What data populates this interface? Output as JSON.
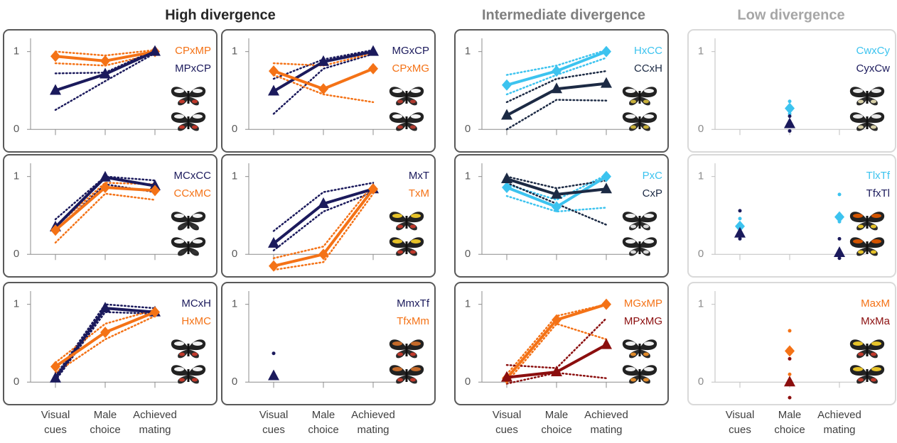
{
  "headings": [
    "High divergence",
    "Intermediate divergence",
    "Low divergence"
  ],
  "chart_data": [
    {
      "type": "line",
      "ylim": [
        -0.29,
        1.28
      ],
      "yticks": [
        0,
        1
      ],
      "frame_color": "#595959",
      "legend_position": "upper right",
      "series": [
        {
          "name": "CPxMP",
          "color": "#f47216",
          "marker": "diamond",
          "values": [
            0.94,
            0.88,
            1.0
          ],
          "lower": [
            0.85,
            0.82,
            0.97
          ],
          "upper": [
            1.0,
            0.95,
            1.02
          ]
        },
        {
          "name": "MPxCP",
          "color": "#1b1a5c",
          "marker": "triangle",
          "values": [
            0.5,
            0.71,
            1.0
          ],
          "lower": [
            0.25,
            0.62,
            0.98
          ],
          "upper": [
            0.72,
            0.73,
            1.02
          ]
        }
      ]
    },
    {
      "type": "line",
      "ylim": [
        -0.29,
        1.28
      ],
      "yticks": [
        0,
        1
      ],
      "frame_color": "#595959",
      "legend_position": "upper right",
      "series": [
        {
          "name": "MGxCP",
          "color": "#1b1a5c",
          "marker": "triangle",
          "values": [
            0.49,
            0.87,
            1.0
          ],
          "lower": [
            0.2,
            0.78,
            0.97
          ],
          "upper": [
            0.65,
            0.9,
            1.02
          ]
        },
        {
          "name": "CPxMG",
          "color": "#f47216",
          "marker": "diamond",
          "values": [
            0.75,
            0.52,
            0.78
          ],
          "lower": [
            0.7,
            0.45,
            0.35
          ],
          "upper": [
            0.85,
            0.82,
            0.98
          ]
        }
      ]
    },
    {
      "type": "line",
      "ylim": [
        -0.29,
        1.28
      ],
      "yticks": [
        0,
        1
      ],
      "frame_color": "#595959",
      "legend_position": "upper right",
      "series": [
        {
          "name": "HxCC",
          "color": "#3cc3ef",
          "marker": "diamond",
          "values": [
            0.57,
            0.75,
            1.0
          ],
          "lower": [
            0.45,
            0.7,
            0.92
          ],
          "upper": [
            0.7,
            0.82,
            1.02
          ]
        },
        {
          "name": "CCxH",
          "color": "#1c2a44",
          "marker": "triangle",
          "values": [
            0.18,
            0.52,
            0.59
          ],
          "lower": [
            0.0,
            0.38,
            0.37
          ],
          "upper": [
            0.35,
            0.65,
            0.75
          ]
        }
      ]
    },
    {
      "type": "scatter",
      "ylim": [
        -0.29,
        1.28
      ],
      "yticks": [
        0,
        1
      ],
      "frame_color": "#d9d9d9",
      "legend_position": "upper right",
      "series": [
        {
          "name": "CwxCy",
          "color": "#3cc3ef",
          "marker": "diamond",
          "values": [
            null,
            0.27,
            null
          ],
          "lower": [
            null,
            0.2,
            null
          ],
          "upper": [
            null,
            0.36,
            null
          ]
        },
        {
          "name": "CyxCw",
          "color": "#1b1a5c",
          "marker": "triangle",
          "values": [
            null,
            0.07,
            null
          ],
          "lower": [
            null,
            -0.02,
            null
          ],
          "upper": [
            null,
            0.17,
            null
          ]
        }
      ]
    },
    {
      "type": "line",
      "ylim": [
        -0.29,
        1.28
      ],
      "yticks": [
        0,
        1
      ],
      "frame_color": "#595959",
      "legend_position": "upper right",
      "series": [
        {
          "name": "MCxCC",
          "color": "#1b1a5c",
          "marker": "triangle",
          "values": [
            0.35,
            0.99,
            0.88
          ],
          "lower": [
            0.3,
            0.9,
            0.8
          ],
          "upper": [
            0.45,
            1.0,
            0.95
          ]
        },
        {
          "name": "CCxMC",
          "color": "#f47216",
          "marker": "diamond",
          "values": [
            0.31,
            0.86,
            0.82
          ],
          "lower": [
            0.15,
            0.78,
            0.7
          ],
          "upper": [
            0.35,
            0.92,
            0.9
          ]
        }
      ]
    },
    {
      "type": "line",
      "ylim": [
        -0.29,
        1.28
      ],
      "yticks": [
        0,
        1
      ],
      "frame_color": "#595959",
      "legend_position": "upper right",
      "series": [
        {
          "name": "MxT",
          "color": "#1b1a5c",
          "marker": "triangle",
          "values": [
            0.14,
            0.65,
            0.84
          ],
          "lower": [
            0.05,
            0.55,
            0.8
          ],
          "upper": [
            0.3,
            0.8,
            0.92
          ]
        },
        {
          "name": "TxM",
          "color": "#f47216",
          "marker": "diamond",
          "values": [
            -0.15,
            0.0,
            0.84
          ],
          "lower": [
            -0.2,
            -0.1,
            0.78
          ],
          "upper": [
            -0.05,
            0.1,
            0.9
          ]
        }
      ]
    },
    {
      "type": "line",
      "ylim": [
        -0.29,
        1.28
      ],
      "yticks": [
        0,
        1
      ],
      "frame_color": "#595959",
      "legend_position": "upper right",
      "series": [
        {
          "name": "PxC",
          "color": "#3cc3ef",
          "marker": "diamond",
          "values": [
            0.86,
            0.61,
            1.0
          ],
          "lower": [
            0.75,
            0.55,
            0.6
          ],
          "upper": [
            0.9,
            0.7,
            1.02
          ]
        },
        {
          "name": "CxP",
          "color": "#1c2a44",
          "marker": "triangle",
          "values": [
            0.97,
            0.77,
            0.84
          ],
          "lower": [
            0.92,
            0.65,
            0.38
          ],
          "upper": [
            1.0,
            0.85,
            0.95
          ]
        }
      ]
    },
    {
      "type": "scatter",
      "ylim": [
        -0.29,
        1.28
      ],
      "yticks": [
        0,
        1
      ],
      "frame_color": "#d9d9d9",
      "legend_position": "upper right",
      "series": [
        {
          "name": "TlxTf",
          "color": "#3cc3ef",
          "marker": "diamond",
          "values": [
            0.36,
            null,
            0.48
          ],
          "lower": [
            0.3,
            null,
            0.42
          ],
          "upper": [
            0.46,
            null,
            0.77
          ]
        },
        {
          "name": "TfxTl",
          "color": "#1b1a5c",
          "marker": "triangle",
          "values": [
            0.27,
            null,
            0.02
          ],
          "lower": [
            0.2,
            null,
            -0.05
          ],
          "upper": [
            0.56,
            null,
            0.2
          ]
        }
      ]
    },
    {
      "type": "line",
      "ylim": [
        -0.29,
        1.28
      ],
      "yticks": [
        0,
        1
      ],
      "frame_color": "#595959",
      "legend_position": "upper right",
      "categories": [
        "Visual cues",
        "Male choice",
        "Achieved mating"
      ],
      "series": [
        {
          "name": "MCxH",
          "color": "#1b1a5c",
          "marker": "triangle",
          "values": [
            0.05,
            0.95,
            0.9
          ],
          "lower": [
            0.02,
            0.9,
            0.88
          ],
          "upper": [
            0.08,
            1.0,
            0.95
          ]
        },
        {
          "name": "HxMC",
          "color": "#f47216",
          "marker": "diamond",
          "values": [
            0.2,
            0.64,
            0.9
          ],
          "lower": [
            0.12,
            0.55,
            0.85
          ],
          "upper": [
            0.25,
            0.75,
            0.93
          ]
        }
      ]
    },
    {
      "type": "scatter",
      "ylim": [
        -0.29,
        1.28
      ],
      "yticks": [
        0,
        1
      ],
      "frame_color": "#595959",
      "legend_position": "upper right",
      "categories": [
        "Visual cues",
        "Male choice",
        "Achieved mating"
      ],
      "series": [
        {
          "name": "MmxTf",
          "color": "#1b1a5c",
          "marker": "triangle",
          "values": [
            0.08,
            null,
            null
          ],
          "lower": [
            null,
            null,
            null
          ],
          "upper": [
            0.37,
            null,
            null
          ]
        },
        {
          "name": "TfxMm",
          "color": "#f47216",
          "marker": "diamond",
          "values": [
            null,
            null,
            null
          ],
          "lower": [
            null,
            null,
            null
          ],
          "upper": [
            null,
            null,
            null
          ]
        }
      ]
    },
    {
      "type": "line",
      "ylim": [
        -0.29,
        1.28
      ],
      "yticks": [
        0,
        1
      ],
      "frame_color": "#595959",
      "legend_position": "upper right",
      "categories": [
        "Visual cues",
        "Male choice",
        "Achieved mating"
      ],
      "series": [
        {
          "name": "MGxMP",
          "color": "#f47216",
          "marker": "diamond",
          "values": [
            0.05,
            0.8,
            1.0
          ],
          "lower": [
            0.0,
            0.75,
            0.55
          ],
          "upper": [
            0.1,
            0.85,
            1.0
          ]
        },
        {
          "name": "MPxMG",
          "color": "#8b0e0e",
          "marker": "triangle",
          "values": [
            0.06,
            0.13,
            0.48
          ],
          "lower": [
            -0.02,
            0.12,
            0.05
          ],
          "upper": [
            0.22,
            0.18,
            0.82
          ]
        }
      ]
    },
    {
      "type": "scatter",
      "ylim": [
        -0.29,
        1.28
      ],
      "yticks": [
        0,
        1
      ],
      "frame_color": "#d9d9d9",
      "legend_position": "upper right",
      "categories": [
        "Visual cues",
        "Male choice",
        "Achieved mating"
      ],
      "series": [
        {
          "name": "MaxM",
          "color": "#f47216",
          "marker": "diamond",
          "values": [
            null,
            0.4,
            null
          ],
          "lower": [
            null,
            0.1,
            null
          ],
          "upper": [
            null,
            0.66,
            null
          ]
        },
        {
          "name": "MxMa",
          "color": "#8b0e0e",
          "marker": "triangle",
          "values": [
            null,
            0.0,
            null
          ],
          "lower": [
            null,
            -0.2,
            null
          ],
          "upper": [
            null,
            0.3,
            null
          ]
        }
      ]
    }
  ]
}
